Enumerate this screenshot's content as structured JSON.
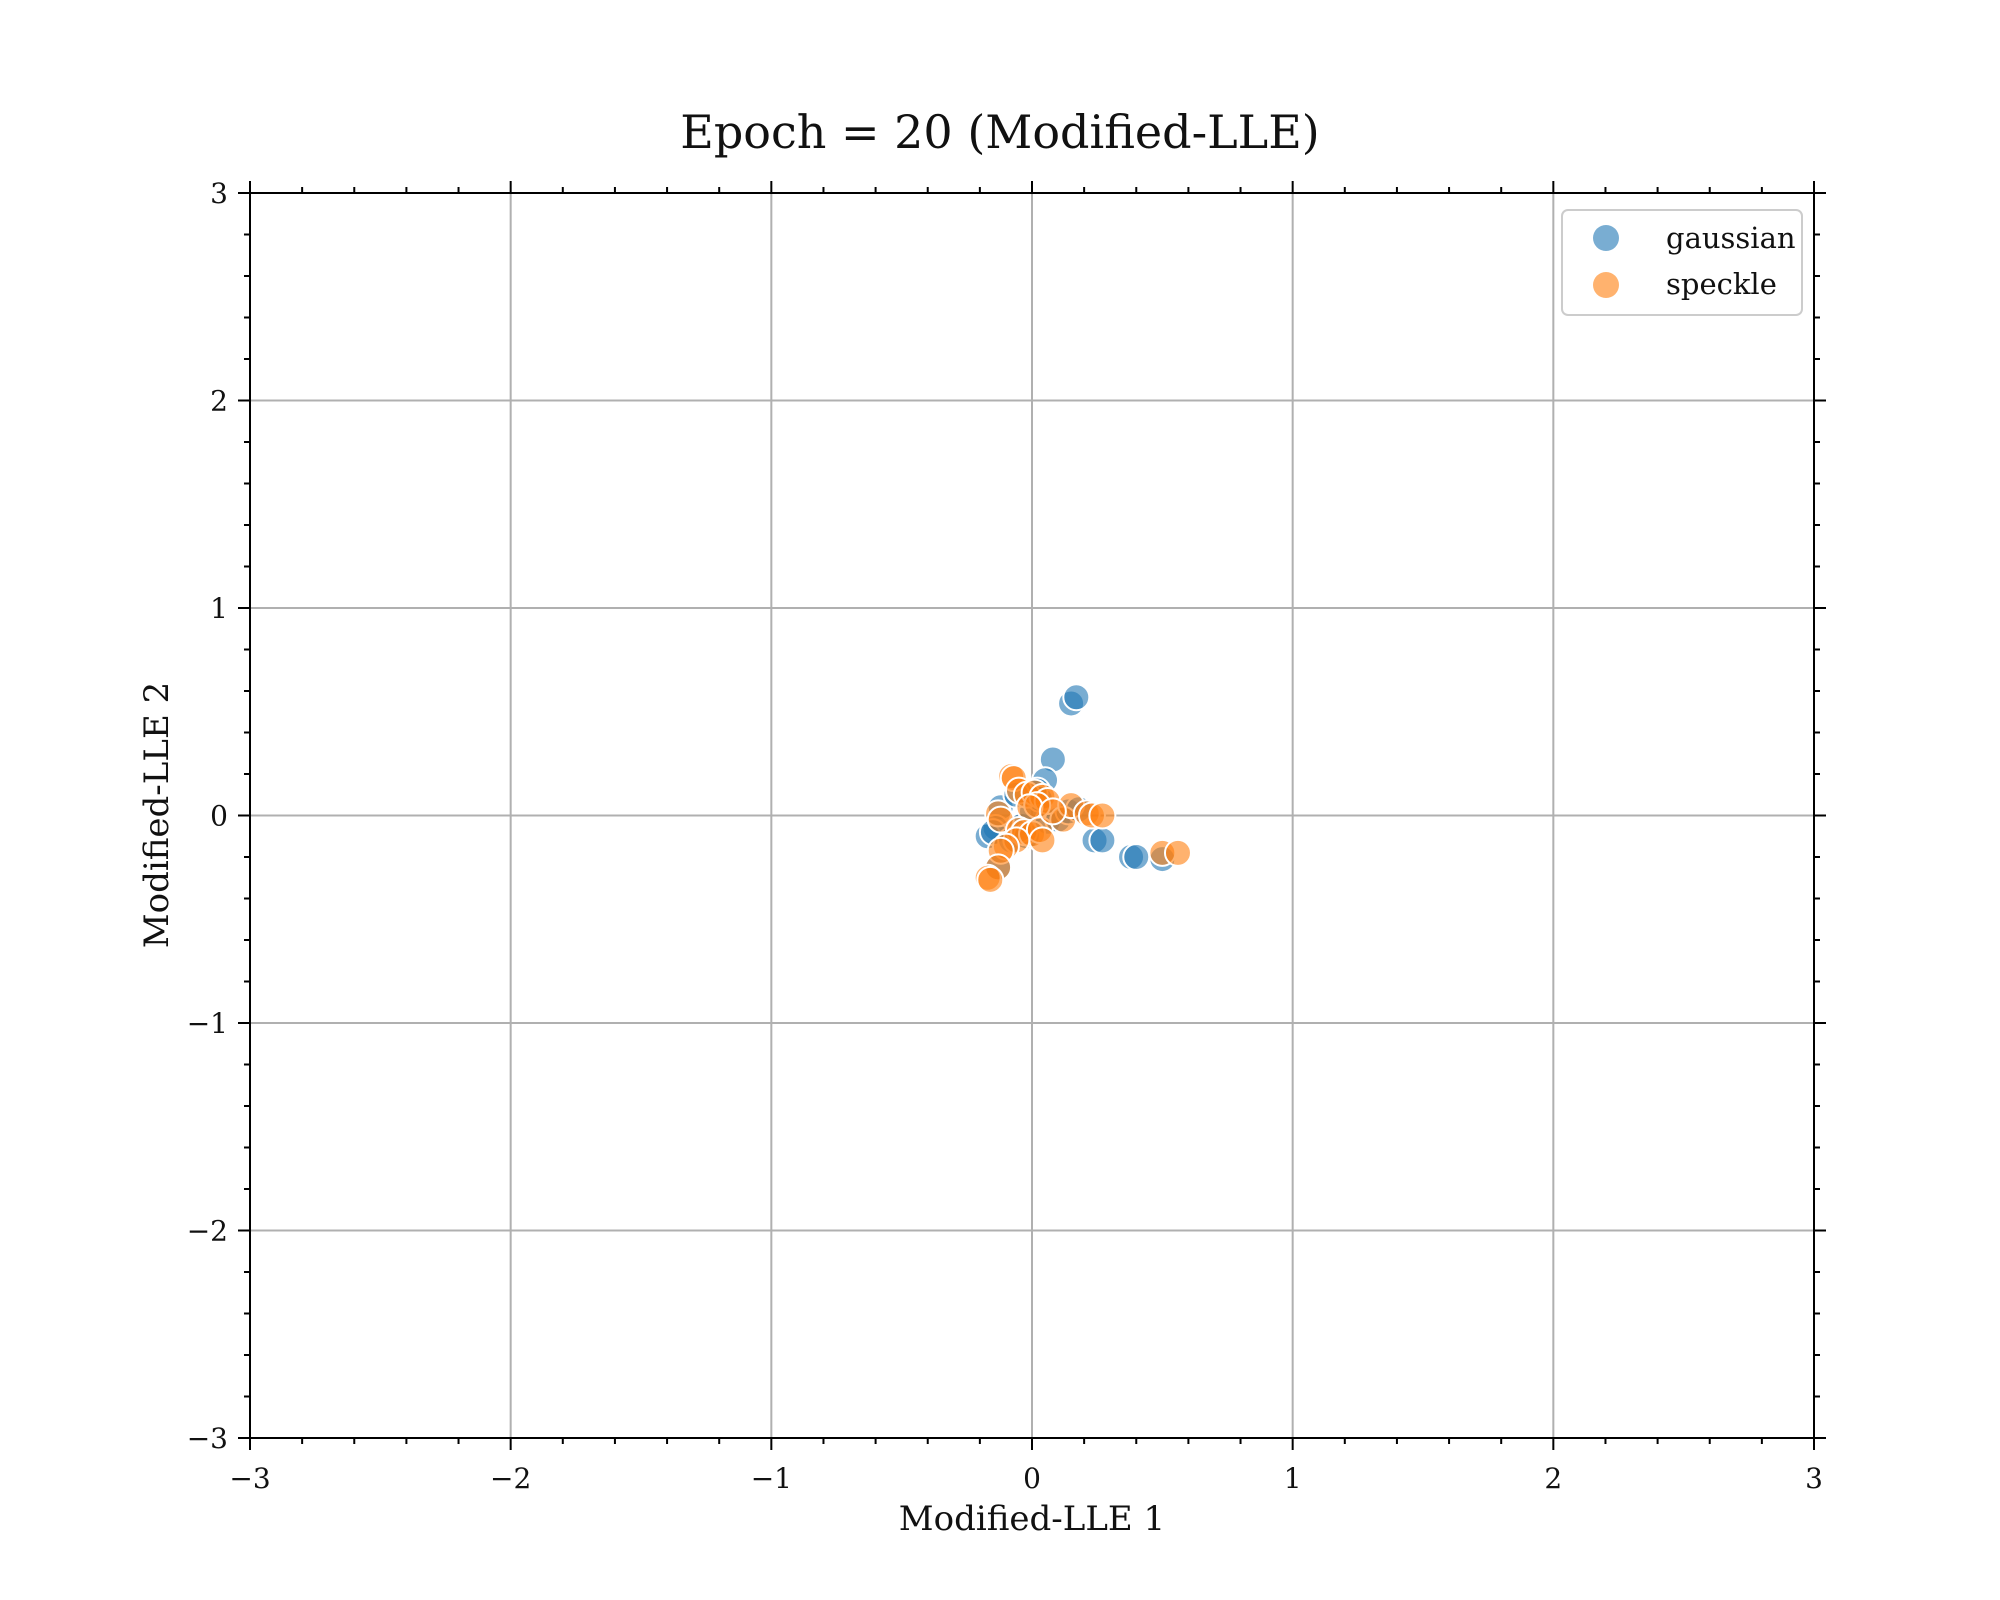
{
  "chart_data": {
    "type": "scatter",
    "title": "Epoch = 20 (Modified-LLE)",
    "xlabel": "Modified-LLE 1",
    "ylabel": "Modified-LLE 2",
    "xlim": [
      -3,
      3
    ],
    "ylim": [
      -3,
      3
    ],
    "xticks": [
      -3,
      -2,
      -1,
      0,
      1,
      2,
      3
    ],
    "yticks": [
      -3,
      -2,
      -1,
      0,
      1,
      2,
      3
    ],
    "xtick_labels": [
      "−3",
      "−2",
      "−1",
      "0",
      "1",
      "2",
      "3"
    ],
    "ytick_labels": [
      "−3",
      "−2",
      "−1",
      "0",
      "1",
      "2",
      "3"
    ],
    "grid": true,
    "legend_position": "top-right",
    "series": [
      {
        "name": "gaussian",
        "color": "#1f77b4",
        "points": [
          [
            0.15,
            0.54
          ],
          [
            0.17,
            0.57
          ],
          [
            0.08,
            0.27
          ],
          [
            0.05,
            0.17
          ],
          [
            0.02,
            0.12
          ],
          [
            -0.12,
            0.04
          ],
          [
            -0.14,
            -0.06
          ],
          [
            -0.17,
            -0.1
          ],
          [
            -0.15,
            -0.08
          ],
          [
            -0.13,
            -0.25
          ],
          [
            -0.08,
            -0.12
          ],
          [
            -0.04,
            -0.05
          ],
          [
            0.0,
            0.02
          ],
          [
            0.03,
            0.08
          ],
          [
            0.06,
            -0.03
          ],
          [
            0.1,
            -0.02
          ],
          [
            0.14,
            0.02
          ],
          [
            0.18,
            0.03
          ],
          [
            0.24,
            -0.12
          ],
          [
            0.27,
            -0.12
          ],
          [
            0.38,
            -0.2
          ],
          [
            0.4,
            -0.2
          ],
          [
            0.5,
            -0.21
          ],
          [
            -0.06,
            0.1
          ],
          [
            -0.02,
            -0.1
          ]
        ]
      },
      {
        "name": "speckle",
        "color": "#ff7f0e",
        "points": [
          [
            -0.08,
            0.19
          ],
          [
            -0.07,
            0.18
          ],
          [
            -0.05,
            0.12
          ],
          [
            -0.02,
            0.1
          ],
          [
            0.01,
            0.11
          ],
          [
            0.04,
            0.09
          ],
          [
            0.06,
            0.07
          ],
          [
            0.02,
            0.05
          ],
          [
            -0.01,
            0.04
          ],
          [
            -0.13,
            0.01
          ],
          [
            -0.12,
            -0.02
          ],
          [
            -0.05,
            -0.07
          ],
          [
            -0.03,
            -0.08
          ],
          [
            0.0,
            -0.09
          ],
          [
            0.03,
            -0.07
          ],
          [
            0.04,
            -0.12
          ],
          [
            -0.06,
            -0.12
          ],
          [
            -0.1,
            -0.15
          ],
          [
            -0.12,
            -0.17
          ],
          [
            -0.13,
            -0.25
          ],
          [
            -0.17,
            -0.3
          ],
          [
            -0.16,
            -0.31
          ],
          [
            0.12,
            -0.02
          ],
          [
            0.15,
            0.05
          ],
          [
            0.21,
            0.01
          ],
          [
            0.23,
            0.0
          ],
          [
            0.27,
            0.0
          ],
          [
            0.5,
            -0.18
          ],
          [
            0.56,
            -0.18
          ],
          [
            0.08,
            0.02
          ]
        ]
      }
    ]
  }
}
